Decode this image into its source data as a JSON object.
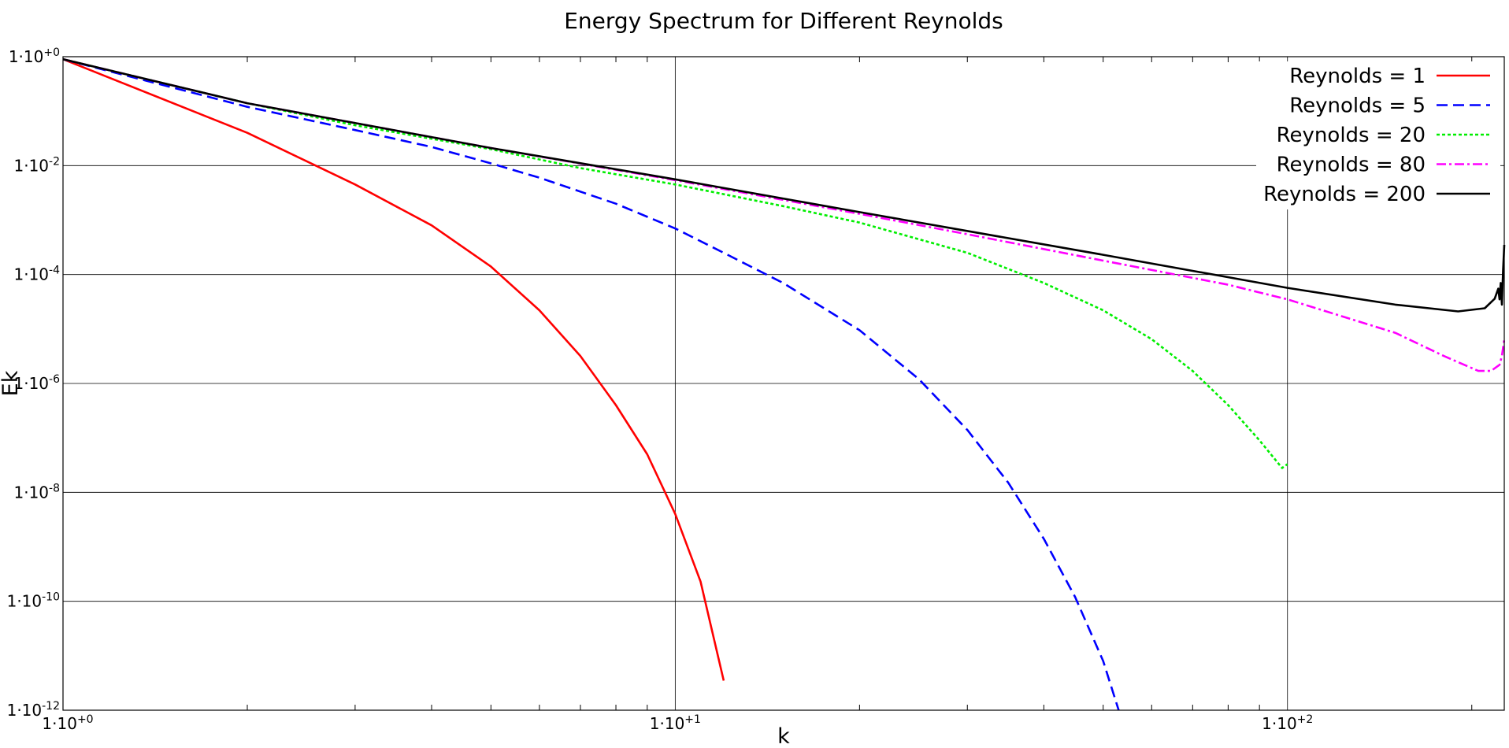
{
  "chart_data": {
    "type": "line",
    "title": "Energy Spectrum for Different Reynolds",
    "xlabel": "k",
    "ylabel": "Ek",
    "x_scale": "log",
    "y_scale": "log",
    "xlim": [
      1,
      226
    ],
    "ylim": [
      1e-12,
      1
    ],
    "x_ticks": [
      {
        "value": 1,
        "label": "1·10+0"
      },
      {
        "value": 10,
        "label": "1·10+1"
      },
      {
        "value": 100,
        "label": "1·10+2"
      }
    ],
    "y_ticks": [
      {
        "value": 1,
        "label": "1·10+0"
      },
      {
        "value": 0.01,
        "label": "1·10-2"
      },
      {
        "value": 0.0001,
        "label": "1·10-4"
      },
      {
        "value": 1e-06,
        "label": "1·10-6"
      },
      {
        "value": 1e-08,
        "label": "1·10-8"
      },
      {
        "value": 1e-10,
        "label": "1·10-10"
      },
      {
        "value": 1e-12,
        "label": "1·10-12"
      }
    ],
    "grid": true,
    "legend_position": "top-right",
    "series": [
      {
        "name": "Reynolds = 1",
        "color": "#ff0000",
        "dash": "solid",
        "points": [
          [
            1,
            0.9
          ],
          [
            2,
            0.04
          ],
          [
            3,
            0.0045
          ],
          [
            4,
            0.0008
          ],
          [
            5,
            0.00014
          ],
          [
            6,
            2.2e-05
          ],
          [
            7,
            3.2e-06
          ],
          [
            8,
            4e-07
          ],
          [
            9,
            5e-08
          ],
          [
            10,
            4e-09
          ],
          [
            11,
            2.3e-10
          ],
          [
            12,
            3.5e-12
          ]
        ]
      },
      {
        "name": "Reynolds = 5",
        "color": "#0000ff",
        "dash": "dashed",
        "points": [
          [
            1,
            0.9
          ],
          [
            2,
            0.12
          ],
          [
            3,
            0.045
          ],
          [
            4,
            0.022
          ],
          [
            5,
            0.011
          ],
          [
            6,
            0.006
          ],
          [
            8,
            0.002
          ],
          [
            10,
            0.0007
          ],
          [
            12,
            0.00025
          ],
          [
            15,
            7e-05
          ],
          [
            20,
            9.5e-06
          ],
          [
            25,
            1.2e-06
          ],
          [
            30,
            1.4e-07
          ],
          [
            35,
            1.5e-08
          ],
          [
            40,
            1.4e-09
          ],
          [
            45,
            1.2e-10
          ],
          [
            50,
            8e-12
          ],
          [
            53,
            1e-12
          ]
        ]
      },
      {
        "name": "Reynolds = 20",
        "color": "#00ee00",
        "dash": "dotted",
        "points": [
          [
            1,
            0.9
          ],
          [
            2,
            0.14
          ],
          [
            3,
            0.055
          ],
          [
            5,
            0.02
          ],
          [
            7,
            0.009
          ],
          [
            10,
            0.0045
          ],
          [
            15,
            0.0018
          ],
          [
            20,
            0.0009
          ],
          [
            30,
            0.00025
          ],
          [
            40,
            7e-05
          ],
          [
            50,
            2.2e-05
          ],
          [
            60,
            6.5e-06
          ],
          [
            70,
            1.7e-06
          ],
          [
            80,
            4e-07
          ],
          [
            90,
            9e-08
          ],
          [
            98,
            2.8e-08
          ],
          [
            100,
            3.3e-08
          ]
        ]
      },
      {
        "name": "Reynolds = 80",
        "color": "#ff00ff",
        "dash": "dashdot",
        "points": [
          [
            1,
            0.9
          ],
          [
            2,
            0.14
          ],
          [
            5,
            0.021
          ],
          [
            10,
            0.0054
          ],
          [
            20,
            0.0013
          ],
          [
            30,
            0.00055
          ],
          [
            50,
            0.00018
          ],
          [
            80,
            6.5e-05
          ],
          [
            100,
            3.5e-05
          ],
          [
            150,
            8.5e-06
          ],
          [
            180,
            3.2e-06
          ],
          [
            205,
            1.7e-06
          ],
          [
            215,
            1.7e-06
          ],
          [
            222,
            2.2e-06
          ],
          [
            224,
            3.2e-06
          ],
          [
            226,
            6.5e-06
          ]
        ]
      },
      {
        "name": "Reynolds = 200",
        "color": "#000000",
        "dash": "solid",
        "points": [
          [
            1,
            0.9
          ],
          [
            2,
            0.14
          ],
          [
            5,
            0.021
          ],
          [
            10,
            0.0056
          ],
          [
            20,
            0.0014
          ],
          [
            50,
            0.00023
          ],
          [
            100,
            5.7e-05
          ],
          [
            150,
            2.8e-05
          ],
          [
            190,
            2.1e-05
          ],
          [
            210,
            2.4e-05
          ],
          [
            218,
            3.6e-05
          ],
          [
            221,
            5.5e-05
          ],
          [
            222,
            3.5e-05
          ],
          [
            223,
            7e-05
          ],
          [
            224,
            2.8e-05
          ],
          [
            225,
            0.00012
          ],
          [
            226,
            0.00035
          ]
        ]
      }
    ]
  }
}
